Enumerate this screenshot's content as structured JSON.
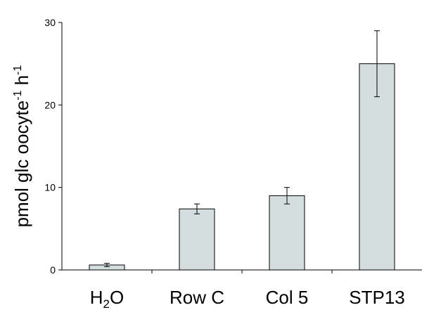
{
  "chart_data": {
    "type": "bar",
    "categories": [
      {
        "main": "H",
        "sub": "2",
        "rest": "O"
      },
      {
        "main": "Row C",
        "sub": "",
        "rest": ""
      },
      {
        "main": "Col 5",
        "sub": "",
        "rest": ""
      },
      {
        "main": "STP13",
        "sub": "",
        "rest": ""
      }
    ],
    "values": [
      0.6,
      7.4,
      9.0,
      25.0
    ],
    "errors": [
      0.2,
      0.6,
      1.0,
      4.0
    ],
    "ylabel": {
      "base": "pmol glc oocyte",
      "sup1": "-1",
      "mid": " h",
      "sup2": "-1"
    },
    "ylim": [
      0,
      30
    ],
    "yticks": [
      "0",
      "10",
      "20",
      "30"
    ],
    "bar_color": "#d5dede",
    "grid": false
  }
}
